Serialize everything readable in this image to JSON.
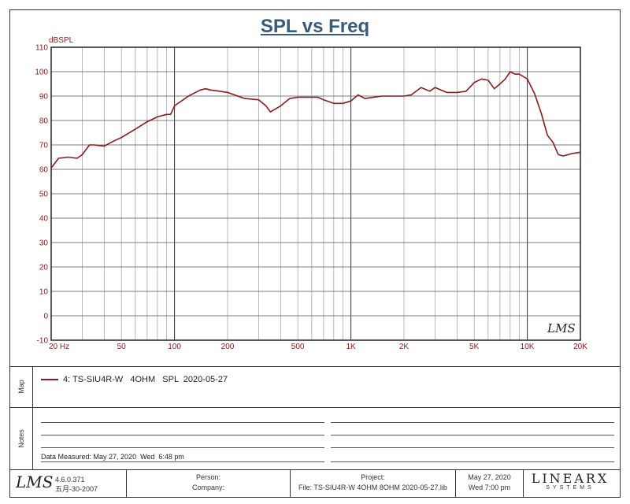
{
  "title": "SPL vs Freq",
  "chart_data": {
    "type": "line",
    "xscale": "log",
    "xlim": [
      20,
      20000
    ],
    "ylim": [
      -10,
      110
    ],
    "ylabel": "dBSPL",
    "x_ticks": [
      20,
      50,
      100,
      200,
      500,
      1000,
      2000,
      5000,
      10000,
      20000
    ],
    "x_tick_labels": [
      "20 Hz",
      "50",
      "100",
      "200",
      "500",
      "1K",
      "2K",
      "5K",
      "10K",
      "20K"
    ],
    "y_ticks": [
      -10,
      0,
      10,
      20,
      30,
      40,
      50,
      60,
      70,
      80,
      90,
      100,
      110
    ],
    "grid": true,
    "series": [
      {
        "name": "4: TS-SIU4R-W   4OHM   SPL  2020-05-27",
        "color": "#8b1a1a",
        "x": [
          20,
          22,
          25,
          28,
          30,
          33,
          35,
          40,
          45,
          50,
          60,
          70,
          80,
          90,
          95,
          100,
          120,
          140,
          150,
          160,
          180,
          200,
          250,
          300,
          330,
          350,
          400,
          450,
          500,
          550,
          600,
          650,
          700,
          800,
          900,
          1000,
          1100,
          1200,
          1500,
          1800,
          2000,
          2200,
          2500,
          2800,
          3000,
          3500,
          4000,
          4500,
          5000,
          5500,
          6000,
          6500,
          7000,
          7500,
          8000,
          8500,
          9000,
          10000,
          11000,
          12000,
          13000,
          14000,
          15000,
          16000,
          18000,
          20000
        ],
        "y": [
          60.5,
          64.5,
          65,
          64.5,
          66,
          70,
          70,
          69.5,
          71.5,
          73,
          76.5,
          79.5,
          81.5,
          82.5,
          82.5,
          86,
          90,
          92.5,
          93,
          92.5,
          92,
          91.5,
          89,
          88.5,
          86,
          83.5,
          86,
          89,
          89.5,
          89.5,
          89.5,
          89.5,
          88.5,
          87,
          87,
          88,
          90.5,
          89,
          90,
          90,
          90,
          90.5,
          93.5,
          92,
          93.5,
          91.5,
          91.5,
          92,
          95.5,
          97,
          96.5,
          93,
          95,
          97,
          100,
          99,
          99,
          97,
          91,
          83,
          74,
          71,
          66,
          65.5,
          66.5,
          67
        ]
      }
    ]
  },
  "legend": {
    "section_label": "Map",
    "entry": "4: TS-SIU4R-W   4OHM   SPL  2020-05-27"
  },
  "notes": {
    "section_label": "Notes",
    "measured": "Data Measured: May 27, 2020  Wed  6:48 pm"
  },
  "footer": {
    "logo": "LMS",
    "version": "4.6.0.371",
    "version_date": "五月-30-2007",
    "person_label": "Person:",
    "company_label": "Company:",
    "project_label": "Project:",
    "file": "File: TS-SIU4R-W  4OHM   8OHM  2020-05-27.lib",
    "date": "May 27, 2020",
    "day_time": "Wed  7:00 pm",
    "brand": "LINEARX",
    "brand_sub": "SYSTEMS"
  },
  "watermark": "LMS"
}
